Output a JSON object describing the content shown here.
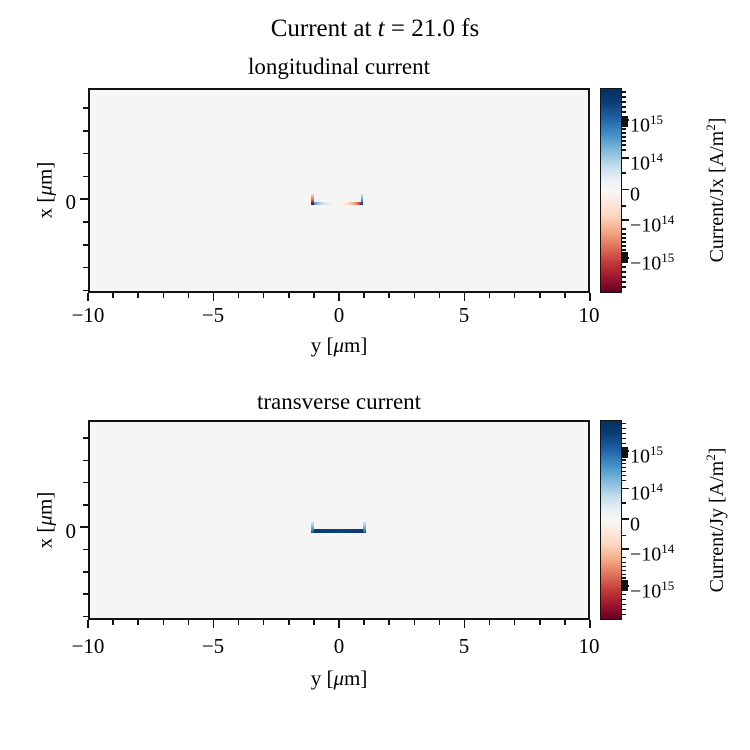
{
  "suptitle": {
    "pre": "Current at ",
    "var": "t",
    "post": " = 21.0 fs"
  },
  "subplots": [
    {
      "title": "longitudinal current",
      "xlabel_pre": "y [",
      "xlabel_mu": "μ",
      "xlabel_post": "m]",
      "ylabel_pre": "x [",
      "ylabel_mu": "μ",
      "ylabel_post": "m]",
      "x_ticks": [
        "−10",
        "−5",
        "0",
        "5",
        "10"
      ],
      "y_tick": "0",
      "cbar_label_pre": "Current/Jx [A/m",
      "cbar_label_sup": "2",
      "cbar_label_post": "]",
      "cbar_ticks": [
        {
          "m": "10",
          "e": "15"
        },
        {
          "m": "10",
          "e": "14"
        },
        {
          "m": "0",
          "e": ""
        },
        {
          "m": "−10",
          "e": "14"
        },
        {
          "m": "−10",
          "e": "15"
        }
      ]
    },
    {
      "title": "transverse current",
      "xlabel_pre": "y [",
      "xlabel_mu": "μ",
      "xlabel_post": "m]",
      "ylabel_pre": "x [",
      "ylabel_mu": "μ",
      "ylabel_post": "m]",
      "x_ticks": [
        "−10",
        "−5",
        "0",
        "5",
        "10"
      ],
      "y_tick": "0",
      "cbar_label_pre": "Current/Jy [A/m",
      "cbar_label_sup": "2",
      "cbar_label_post": "]",
      "cbar_ticks": [
        {
          "m": "10",
          "e": "15"
        },
        {
          "m": "10",
          "e": "14"
        },
        {
          "m": "0",
          "e": ""
        },
        {
          "m": "−10",
          "e": "14"
        },
        {
          "m": "−10",
          "e": "15"
        }
      ]
    }
  ],
  "colors": {
    "cmap_positive_max": "#053061",
    "cmap_negative_max": "#67001f",
    "cmap_center": "#f7f7f7",
    "axes_background": "#f5f5f5",
    "spine": "#131313"
  },
  "chart_data": [
    {
      "type": "heatmap",
      "figure_title": "Current at t = 21.0 fs",
      "title": "longitudinal current",
      "field": "Jx",
      "xlabel": "y [μm]",
      "ylabel": "x [μm]",
      "xlim": [
        -10,
        10
      ],
      "x_major_ticks": [
        -10,
        -5,
        0,
        5,
        10
      ],
      "x_minor_tick_step": 1,
      "y_labeled_ticks": [
        0
      ],
      "ylim_approx": [
        -2.5,
        2
      ],
      "colormap": "RdBu_r",
      "colorbar": {
        "label": "Current/Jx [A/m^2]",
        "scale": "symlog",
        "tick_values": [
          1000000000000000.0,
          100000000000000.0,
          0,
          -100000000000000.0,
          -1000000000000000.0
        ],
        "position": "right"
      },
      "grid": false,
      "background_value": 0,
      "features": [
        {
          "shape": "thin horizontal filament",
          "x_um": 0,
          "y_um_range": [
            -1,
            1
          ],
          "description": "along the filament Jx grades from positive (blue, ~+1e14) near y=-1 through ~0 at center to negative (red, ~-1e14) near y=+1; short vertical end-caps just above the line: strong negative (dark red, ~-1e15) cap at y=-1 and strong positive (dark blue, ~+1e15) cap at y=+1"
        }
      ]
    },
    {
      "type": "heatmap",
      "figure_title": "Current at t = 21.0 fs",
      "title": "transverse current",
      "field": "Jy",
      "xlabel": "y [μm]",
      "ylabel": "x [μm]",
      "xlim": [
        -10,
        10
      ],
      "x_major_ticks": [
        -10,
        -5,
        0,
        5,
        10
      ],
      "x_minor_tick_step": 1,
      "y_labeled_ticks": [
        0
      ],
      "ylim_approx": [
        -2.5,
        2
      ],
      "colormap": "RdBu_r",
      "colorbar": {
        "label": "Current/Jy [A/m^2]",
        "scale": "symlog",
        "tick_values": [
          1000000000000000.0,
          100000000000000.0,
          0,
          -100000000000000.0,
          -1000000000000000.0
        ],
        "position": "right"
      },
      "grid": false,
      "background_value": 0,
      "features": [
        {
          "shape": "horizontal bar",
          "x_um": 0,
          "y_um_range": [
            -1,
            1
          ],
          "description": "uniform strong positive Jy (dark navy, ~+2e15) bar at x=0 spanning y=-1..+1, with lighter positive (light blue fading upward) vertical end-caps at y=±1"
        }
      ]
    }
  ]
}
